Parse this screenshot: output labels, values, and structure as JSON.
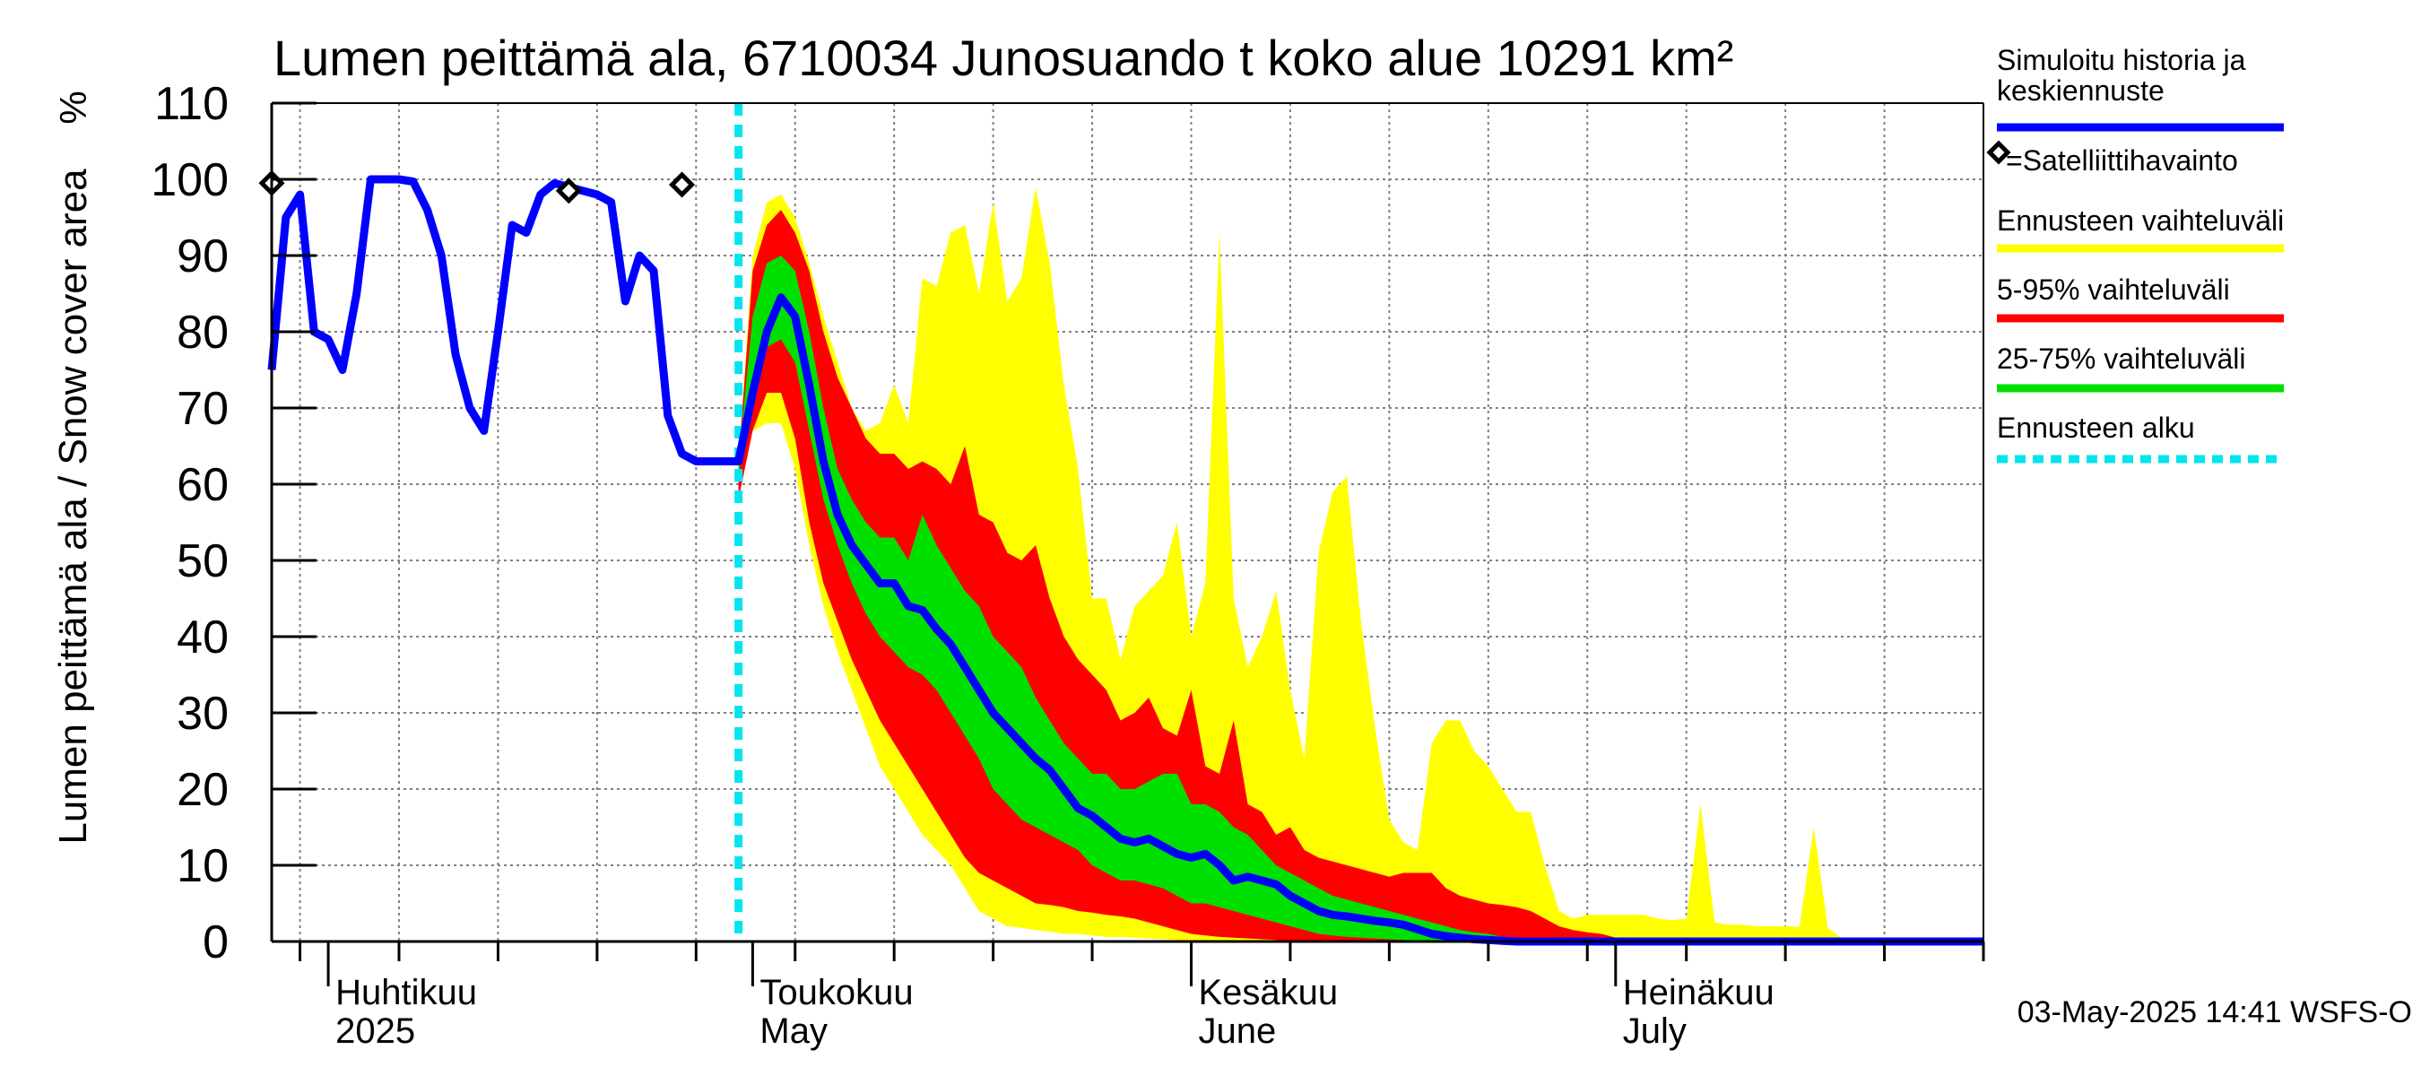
{
  "chart_data": {
    "type": "area",
    "title": "Lumen peittämä ala, 6710034 Junosuando t koko alue 10291 km²",
    "ylabel": "Lumen peittämä ala / Snow cover area",
    "yunit": "%",
    "xlim": [
      "2025-03-28",
      "2025-07-27"
    ],
    "ylim": [
      0,
      110
    ],
    "yticks": [
      0,
      10,
      20,
      30,
      40,
      50,
      60,
      70,
      80,
      90,
      100,
      110
    ],
    "grid": true,
    "legend_position": "right",
    "month_labels": [
      {
        "date": "2025-04-01",
        "fi": "Huhtikuu",
        "en": "2025"
      },
      {
        "date": "2025-05-01",
        "fi": "Toukokuu",
        "en": "May"
      },
      {
        "date": "2025-06-01",
        "fi": "Kesäkuu",
        "en": "June"
      },
      {
        "date": "2025-07-01",
        "fi": "Heinäkuu",
        "en": "July"
      }
    ],
    "forecast_start": "2025-04-30",
    "history": {
      "name": "Simuloitu historia ja keskiennuste",
      "color": "#0000ff",
      "x": [
        "2025-03-28",
        "2025-03-29",
        "2025-03-30",
        "2025-03-31",
        "2025-04-01",
        "2025-04-02",
        "2025-04-03",
        "2025-04-04",
        "2025-04-05",
        "2025-04-06",
        "2025-04-07",
        "2025-04-08",
        "2025-04-09",
        "2025-04-10",
        "2025-04-11",
        "2025-04-12",
        "2025-04-13",
        "2025-04-14",
        "2025-04-15",
        "2025-04-16",
        "2025-04-17",
        "2025-04-18",
        "2025-04-19",
        "2025-04-20",
        "2025-04-21",
        "2025-04-22",
        "2025-04-23",
        "2025-04-24",
        "2025-04-25",
        "2025-04-26",
        "2025-04-27",
        "2025-04-28",
        "2025-04-29",
        "2025-04-30"
      ],
      "values": [
        75,
        95,
        98,
        80,
        79,
        75,
        85,
        100,
        100,
        100,
        99.7,
        96,
        90,
        77,
        70,
        67,
        80,
        94,
        93,
        98,
        99.5,
        99,
        98.5,
        98,
        97,
        84,
        90,
        88,
        69,
        64,
        63,
        63,
        63,
        63
      ]
    },
    "mean_forecast": {
      "x": [
        "2025-04-30",
        "2025-05-01",
        "2025-05-02",
        "2025-05-03",
        "2025-05-04",
        "2025-05-05",
        "2025-05-06",
        "2025-05-07",
        "2025-05-08",
        "2025-05-09",
        "2025-05-10",
        "2025-05-11",
        "2025-05-12",
        "2025-05-13",
        "2025-05-14",
        "2025-05-15",
        "2025-05-16",
        "2025-05-17",
        "2025-05-18",
        "2025-05-19",
        "2025-05-20",
        "2025-05-21",
        "2025-05-22",
        "2025-05-23",
        "2025-05-24",
        "2025-05-25",
        "2025-05-26",
        "2025-05-27",
        "2025-05-28",
        "2025-05-29",
        "2025-05-30",
        "2025-05-31",
        "2025-06-01",
        "2025-06-02",
        "2025-06-03",
        "2025-06-04",
        "2025-06-05",
        "2025-06-06",
        "2025-06-07",
        "2025-06-08",
        "2025-06-09",
        "2025-06-10",
        "2025-06-11",
        "2025-06-12",
        "2025-06-13",
        "2025-06-14",
        "2025-06-15",
        "2025-06-16",
        "2025-06-17",
        "2025-06-18",
        "2025-06-19",
        "2025-06-20",
        "2025-06-21",
        "2025-06-22",
        "2025-06-23",
        "2025-06-24",
        "2025-06-25",
        "2025-06-26",
        "2025-06-27",
        "2025-06-28",
        "2025-06-29",
        "2025-06-30",
        "2025-07-01",
        "2025-07-27"
      ],
      "values": [
        63,
        72,
        80,
        84.5,
        82,
        73,
        63,
        56,
        52,
        49.5,
        47,
        47,
        44,
        43.5,
        41,
        39,
        36,
        33,
        30,
        28,
        26,
        24,
        22.5,
        20,
        17.5,
        16.5,
        15,
        13.5,
        13,
        13.5,
        12.5,
        11.5,
        11,
        11.5,
        10,
        8,
        8.5,
        8,
        7.5,
        6,
        5,
        4,
        3.5,
        3.3,
        3,
        2.7,
        2.5,
        2.2,
        1.6,
        1,
        0.7,
        0.5,
        0.3,
        0.2,
        0.1,
        0,
        0,
        0,
        0,
        0,
        0,
        0,
        0,
        0
      ]
    },
    "bands": [
      {
        "name": "Ennusteen vaihteluväli",
        "color": "#ffff00",
        "x": [
          "2025-04-30",
          "2025-05-01",
          "2025-05-02",
          "2025-05-03",
          "2025-05-04",
          "2025-05-05",
          "2025-05-06",
          "2025-05-07",
          "2025-05-08",
          "2025-05-09",
          "2025-05-10",
          "2025-05-11",
          "2025-05-12",
          "2025-05-13",
          "2025-05-14",
          "2025-05-15",
          "2025-05-16",
          "2025-05-17",
          "2025-05-18",
          "2025-05-19",
          "2025-05-20",
          "2025-05-21",
          "2025-05-22",
          "2025-05-23",
          "2025-05-24",
          "2025-05-25",
          "2025-05-26",
          "2025-05-27",
          "2025-05-28",
          "2025-05-29",
          "2025-05-30",
          "2025-05-31",
          "2025-06-01",
          "2025-06-02",
          "2025-06-03",
          "2025-06-04",
          "2025-06-05",
          "2025-06-06",
          "2025-06-07",
          "2025-06-08",
          "2025-06-09",
          "2025-06-10",
          "2025-06-11",
          "2025-06-12",
          "2025-06-13",
          "2025-06-14",
          "2025-06-15",
          "2025-06-16",
          "2025-06-17",
          "2025-06-18",
          "2025-06-19",
          "2025-06-20",
          "2025-06-21",
          "2025-06-22",
          "2025-06-23",
          "2025-06-24",
          "2025-06-25",
          "2025-06-26",
          "2025-06-27",
          "2025-06-28",
          "2025-06-29",
          "2025-06-30",
          "2025-07-01",
          "2025-07-02",
          "2025-07-03",
          "2025-07-04",
          "2025-07-05",
          "2025-07-06",
          "2025-07-07",
          "2025-07-08",
          "2025-07-09",
          "2025-07-10",
          "2025-07-11",
          "2025-07-12",
          "2025-07-13",
          "2025-07-14",
          "2025-07-15",
          "2025-07-16",
          "2025-07-17",
          "2025-07-18",
          "2025-07-19",
          "2025-07-20",
          "2025-07-21",
          "2025-07-22",
          "2025-07-23",
          "2025-07-24",
          "2025-07-25",
          "2025-07-26",
          "2025-07-27"
        ],
        "lower": [
          63,
          67,
          68,
          68,
          62,
          52,
          44,
          38,
          33,
          28,
          23,
          20,
          17,
          14,
          12,
          10,
          7,
          4,
          3,
          2,
          1.8,
          1.5,
          1.3,
          1,
          1,
          0.8,
          0.6,
          0.6,
          0.5,
          0.4,
          0.3,
          0.2,
          0.1,
          0,
          0,
          0,
          0,
          0,
          0,
          0,
          0,
          0,
          0,
          0,
          0,
          0,
          0,
          0,
          0,
          0,
          0,
          0,
          0,
          0,
          0,
          0,
          0,
          0,
          0,
          0,
          0,
          0,
          0,
          0,
          0,
          0,
          0,
          0,
          0,
          0,
          0,
          0,
          0,
          0,
          0,
          0,
          0,
          0,
          0,
          0,
          0,
          0,
          0,
          0,
          0,
          0,
          0,
          0,
          0
        ],
        "upper": [
          63,
          90,
          97,
          98,
          95,
          89,
          82,
          76,
          70,
          67,
          68,
          73,
          68,
          87,
          86,
          93,
          94,
          85,
          97,
          84,
          87,
          99,
          89,
          73,
          62,
          45,
          45,
          37,
          44,
          46,
          48,
          55,
          40,
          47,
          93,
          45,
          36,
          40,
          46,
          33,
          24,
          51,
          59,
          61,
          42,
          28,
          16,
          13,
          12,
          26,
          29,
          29,
          25,
          23,
          20,
          17,
          17,
          10,
          4,
          3,
          3.5,
          3.5,
          3.5,
          3.5,
          3.5,
          3,
          2.8,
          3,
          18,
          2.5,
          2.2,
          2.2,
          2,
          2,
          2,
          1.9,
          15,
          1.8,
          0.4,
          0,
          0,
          0,
          0,
          0,
          0,
          0,
          0,
          0,
          0
        ]
      },
      {
        "name": "5-95% vaihteluväli",
        "color": "#ff0000",
        "x": [
          "2025-04-30",
          "2025-05-01",
          "2025-05-02",
          "2025-05-03",
          "2025-05-04",
          "2025-05-05",
          "2025-05-06",
          "2025-05-07",
          "2025-05-08",
          "2025-05-09",
          "2025-05-10",
          "2025-05-11",
          "2025-05-12",
          "2025-05-13",
          "2025-05-14",
          "2025-05-15",
          "2025-05-16",
          "2025-05-17",
          "2025-05-18",
          "2025-05-19",
          "2025-05-20",
          "2025-05-21",
          "2025-05-22",
          "2025-05-23",
          "2025-05-24",
          "2025-05-25",
          "2025-05-26",
          "2025-05-27",
          "2025-05-28",
          "2025-05-29",
          "2025-05-30",
          "2025-05-31",
          "2025-06-01",
          "2025-06-02",
          "2025-06-03",
          "2025-06-04",
          "2025-06-05",
          "2025-06-06",
          "2025-06-07",
          "2025-06-08",
          "2025-06-09",
          "2025-06-10",
          "2025-06-11",
          "2025-06-12",
          "2025-06-13",
          "2025-06-14",
          "2025-06-15",
          "2025-06-16",
          "2025-06-17",
          "2025-06-18",
          "2025-06-19",
          "2025-06-20",
          "2025-06-21",
          "2025-06-22",
          "2025-06-23",
          "2025-06-24",
          "2025-06-25",
          "2025-06-26",
          "2025-06-27",
          "2025-06-28",
          "2025-06-29",
          "2025-06-30",
          "2025-07-01",
          "2025-07-02",
          "2025-07-27"
        ],
        "lower": [
          58,
          67,
          72,
          72,
          66,
          55,
          47,
          42,
          37,
          33,
          29,
          26,
          23,
          20,
          17,
          14,
          11,
          9,
          8,
          7,
          6,
          5,
          4.8,
          4.5,
          4,
          3.8,
          3.5,
          3.3,
          3,
          2.5,
          2,
          1.5,
          1,
          0.8,
          0.6,
          0.5,
          0.4,
          0.3,
          0.2,
          0.1,
          0,
          0,
          0,
          0,
          0,
          0,
          0,
          0,
          0,
          0,
          0,
          0,
          0,
          0,
          0,
          0,
          0,
          0,
          0,
          0,
          0,
          0,
          0,
          0,
          0
        ],
        "upper": [
          63,
          88,
          94,
          96,
          93,
          88,
          80,
          74,
          70,
          66,
          64,
          64,
          62,
          63,
          62,
          60,
          65,
          56,
          55,
          51,
          50,
          52,
          45,
          40,
          37,
          35,
          33,
          29,
          30,
          32,
          28,
          27,
          33,
          23,
          22,
          29,
          18,
          17,
          14,
          15,
          12,
          11,
          10.5,
          10,
          9.5,
          9,
          8.5,
          9,
          9,
          9,
          7,
          6,
          5.5,
          5,
          4.8,
          4.5,
          4,
          3,
          2,
          1.5,
          1.2,
          1,
          0.5,
          0.2,
          0
        ]
      },
      {
        "name": "25-75% vaihteluväli",
        "color": "#00e000",
        "x": [
          "2025-04-30",
          "2025-05-01",
          "2025-05-02",
          "2025-05-03",
          "2025-05-04",
          "2025-05-05",
          "2025-05-06",
          "2025-05-07",
          "2025-05-08",
          "2025-05-09",
          "2025-05-10",
          "2025-05-11",
          "2025-05-12",
          "2025-05-13",
          "2025-05-14",
          "2025-05-15",
          "2025-05-16",
          "2025-05-17",
          "2025-05-18",
          "2025-05-19",
          "2025-05-20",
          "2025-05-21",
          "2025-05-22",
          "2025-05-23",
          "2025-05-24",
          "2025-05-25",
          "2025-05-26",
          "2025-05-27",
          "2025-05-28",
          "2025-05-29",
          "2025-05-30",
          "2025-05-31",
          "2025-06-01",
          "2025-06-02",
          "2025-06-03",
          "2025-06-04",
          "2025-06-05",
          "2025-06-06",
          "2025-06-07",
          "2025-06-08",
          "2025-06-09",
          "2025-06-10",
          "2025-06-11",
          "2025-06-12",
          "2025-06-13",
          "2025-06-14",
          "2025-06-15",
          "2025-06-16",
          "2025-06-17",
          "2025-06-18",
          "2025-06-19",
          "2025-06-20",
          "2025-06-21",
          "2025-06-22",
          "2025-06-23",
          "2025-06-24",
          "2025-06-25",
          "2025-06-26",
          "2025-07-27"
        ],
        "lower": [
          61,
          73,
          78,
          79,
          76,
          67,
          58,
          52,
          47,
          43,
          40,
          38,
          36,
          35,
          33,
          30,
          27,
          24,
          20,
          18,
          16,
          15,
          14,
          13,
          12,
          10,
          9,
          8,
          8,
          7.5,
          7,
          6,
          5,
          5,
          4.5,
          4,
          3.5,
          3,
          2.5,
          2,
          1.5,
          1,
          0.8,
          0.6,
          0.5,
          0.4,
          0.3,
          0.2,
          0.1,
          0,
          0,
          0,
          0,
          0,
          0,
          0,
          0,
          0,
          0
        ],
        "upper": [
          63,
          82,
          89,
          90,
          88,
          80,
          70,
          62,
          58,
          55,
          53,
          53,
          50,
          56,
          52,
          49,
          46,
          44,
          40,
          38,
          36,
          32,
          29,
          26,
          24,
          22,
          22,
          20,
          20,
          21,
          22,
          22,
          18,
          18,
          17,
          15,
          14,
          12,
          10,
          9,
          8,
          7,
          6,
          5.5,
          5,
          4.5,
          4,
          3.5,
          3,
          2.5,
          2,
          1.5,
          1.2,
          1,
          0.6,
          0.4,
          0.2,
          0,
          0
        ]
      }
    ],
    "satellite_observations": {
      "name": "=Satelliittihavainto",
      "x": [
        "2025-03-28",
        "2025-04-18",
        "2025-04-26"
      ],
      "values": [
        99.5,
        98.5,
        99.3
      ]
    },
    "legend": [
      {
        "label": "Simuloitu historia ja keskiennuste",
        "color": "#0000ff",
        "style": "line"
      },
      {
        "label": "=Satelliittihavainto",
        "color": "#000000",
        "style": "diamond"
      },
      {
        "label": "Ennusteen vaihteluväli",
        "color": "#ffff00",
        "style": "line"
      },
      {
        "label": "5-95% vaihteluväli",
        "color": "#ff0000",
        "style": "line"
      },
      {
        "label": "25-75% vaihteluväli",
        "color": "#00e000",
        "style": "line"
      },
      {
        "label": "Ennusteen alku",
        "color": "#00e5ee",
        "style": "dashed"
      }
    ],
    "footer": "03-May-2025 14:41 WSFS-O"
  }
}
